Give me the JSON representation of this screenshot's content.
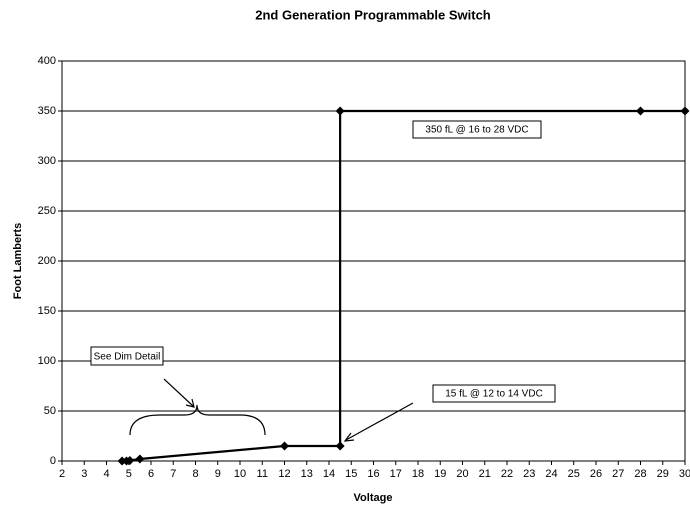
{
  "chart_data": {
    "type": "line",
    "title": "2nd Generation Programmable Switch",
    "x_label": "Voltage",
    "y_label": "Foot Lamberts",
    "x": [
      4.7,
      4.9,
      5.05,
      5.5,
      12,
      14.5,
      14.5,
      28,
      30
    ],
    "series": [
      {
        "name": "Foot Lamberts",
        "color": "#000000",
        "values": [
          0,
          0,
          0.5,
          2,
          15,
          15,
          350,
          350,
          350
        ]
      }
    ],
    "xlim": [
      2,
      30
    ],
    "xticks": [
      2,
      3,
      4,
      5,
      6,
      7,
      8,
      9,
      10,
      11,
      12,
      13,
      14,
      15,
      16,
      17,
      18,
      19,
      20,
      21,
      22,
      23,
      24,
      25,
      26,
      27,
      28,
      29,
      30
    ],
    "ylim": [
      0,
      400
    ],
    "yticks": [
      0,
      50,
      100,
      150,
      200,
      250,
      300,
      350,
      400
    ],
    "grid": true,
    "annotations": [
      "350 fL @ 16 to 28 VDC",
      "15 fL @ 12 to 14 VDC",
      "See Dim Detail"
    ]
  }
}
